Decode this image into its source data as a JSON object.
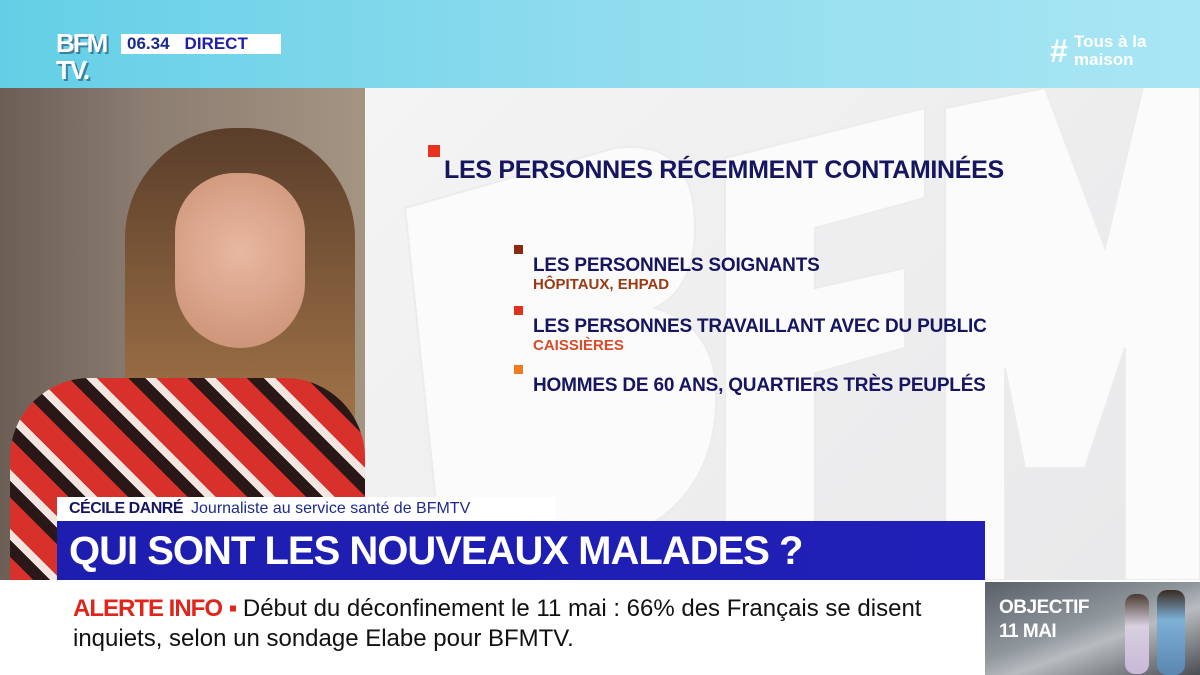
{
  "channel": {
    "logo_text": "BFM TV.",
    "clock": "06.34",
    "live_label": "DIRECT",
    "hashtag": "Tous à la maison",
    "hashtag_symbol": "#"
  },
  "graphic": {
    "watermark": "BFM",
    "title": "LES PERSONNES RÉCEMMENT CONTAMINÉES",
    "title_marker_color": "#e8321e",
    "items": [
      {
        "label": "LES PERSONNELS SOIGNANTS",
        "sub": "HÔPITAUX, EHPAD",
        "marker_color": "#8b2a0e",
        "sub_color": "#9a3a14"
      },
      {
        "label": "LES PERSONNES TRAVAILLANT AVEC DU PUBLIC",
        "sub": "CAISSIÈRES",
        "marker_color": "#e0301e",
        "sub_color": "#d84a28"
      },
      {
        "label": "HOMMES DE 60 ANS, QUARTIERS TRÈS PEUPLÉS",
        "marker_color": "#f07a20"
      }
    ]
  },
  "lower_third": {
    "name": "CÉCILE DANRÉ",
    "role": "Journaliste au service santé de BFMTV",
    "headline": "QUI SONT LES NOUVEAUX MALADES ?"
  },
  "ticker": {
    "label": "ALERTE INFO",
    "separator": "▪",
    "text": "Début du déconfinement le 11 mai : 66% des Français se disent inquiets, selon un sondage Elabe pour BFMTV."
  },
  "promo": {
    "line1": "OBJECTIF",
    "line2": "11 MAI"
  }
}
